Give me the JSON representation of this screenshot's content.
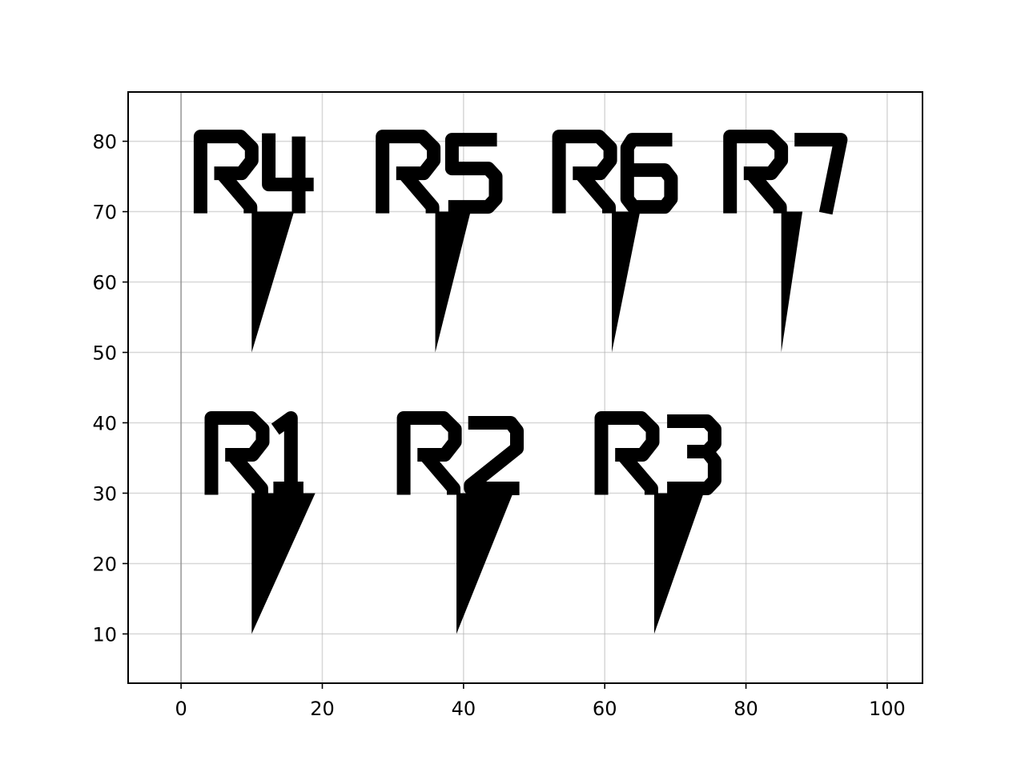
{
  "chart_data": {
    "type": "scatter",
    "title": "",
    "xlabel": "",
    "ylabel": "",
    "xlim": [
      -7.5,
      105
    ],
    "ylim": [
      3,
      87
    ],
    "xticks": [
      0,
      20,
      40,
      60,
      80,
      100
    ],
    "yticks": [
      10,
      20,
      30,
      40,
      50,
      60,
      70,
      80
    ],
    "grid": true,
    "zero_line": true,
    "mark_color": "#000000",
    "markers": [
      {
        "label": "R1",
        "x": 10,
        "y": 10,
        "top_y": 30,
        "tip_x": 19
      },
      {
        "label": "R2",
        "x": 39,
        "y": 10,
        "top_y": 30,
        "tip_x": 47
      },
      {
        "label": "R3",
        "x": 67,
        "y": 10,
        "top_y": 30,
        "tip_x": 74
      },
      {
        "label": "R4",
        "x": 10,
        "y": 50,
        "top_y": 70,
        "tip_x": 16
      },
      {
        "label": "R5",
        "x": 36,
        "y": 50,
        "top_y": 70,
        "tip_x": 41
      },
      {
        "label": "R6",
        "x": 61,
        "y": 50,
        "top_y": 70,
        "tip_x": 65
      },
      {
        "label": "R7",
        "x": 85,
        "y": 50,
        "top_y": 70,
        "tip_x": 88
      }
    ]
  }
}
